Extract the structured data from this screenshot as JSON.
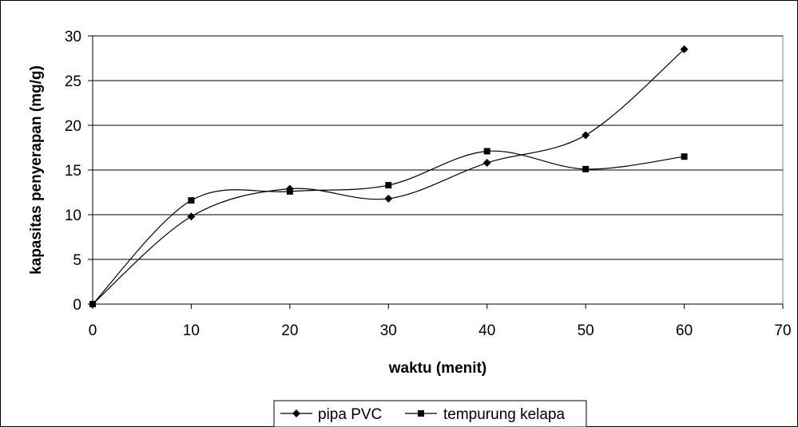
{
  "chart_data": {
    "type": "line",
    "xlabel": "waktu (menit)",
    "ylabel": "kapasitas penyerapan (mg/g)",
    "xlim": [
      0,
      70
    ],
    "ylim": [
      0,
      30
    ],
    "x_ticks": [
      0,
      10,
      20,
      30,
      40,
      50,
      60,
      70
    ],
    "y_ticks": [
      0,
      5,
      10,
      15,
      20,
      25,
      30
    ],
    "grid": "horizontal",
    "smooth": true,
    "legend_position": "bottom-center",
    "series": [
      {
        "name": "pipa PVC",
        "marker": "diamond",
        "color": "#000000",
        "x": [
          0,
          10,
          20,
          30,
          40,
          50,
          60
        ],
        "y": [
          0,
          9.8,
          12.9,
          11.8,
          15.8,
          18.9,
          28.5
        ]
      },
      {
        "name": "tempurung kelapa",
        "marker": "square",
        "color": "#000000",
        "x": [
          0,
          10,
          20,
          30,
          40,
          50,
          60
        ],
        "y": [
          0,
          11.6,
          12.6,
          13.3,
          17.1,
          15.1,
          16.5
        ]
      }
    ]
  }
}
